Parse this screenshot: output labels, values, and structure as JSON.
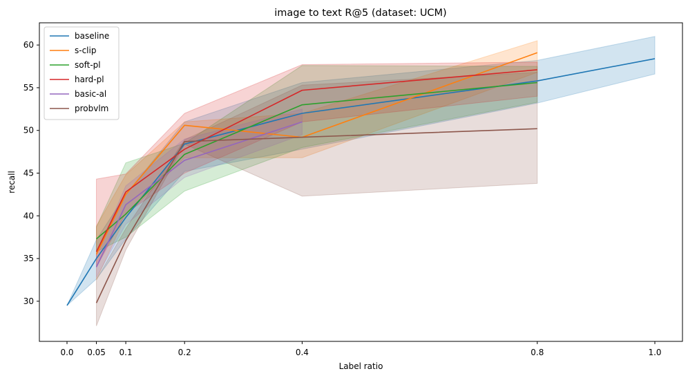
{
  "chart_data": {
    "type": "line",
    "title": "image to text R@5 (dataset: UCM)",
    "xlabel": "Label ratio",
    "ylabel": "recall",
    "xlim": [
      -0.047,
      1.047
    ],
    "ylim": [
      25.3,
      62.6
    ],
    "xticks": [
      0.0,
      0.05,
      0.1,
      0.2,
      0.4,
      0.8,
      1.0
    ],
    "xtick_labels": [
      "0.0",
      "0.05",
      "0.1",
      "0.2",
      "0.4",
      "0.8",
      "1.0"
    ],
    "yticks": [
      30,
      35,
      40,
      45,
      50,
      55,
      60
    ],
    "ytick_labels": [
      "30",
      "35",
      "40",
      "45",
      "50",
      "55",
      "60"
    ],
    "grid": false,
    "legend_position": "top-left",
    "series": [
      {
        "name": "baseline",
        "color": "#1f77b4",
        "x": [
          0.0,
          0.05,
          0.1,
          0.2,
          0.4,
          0.8,
          1.0
        ],
        "y": [
          29.5,
          35.0,
          39.8,
          48.4,
          52.0,
          55.8,
          58.4
        ],
        "lower": [
          29.5,
          32.6,
          37.3,
          45.2,
          47.8,
          53.2,
          56.6
        ],
        "upper": [
          29.5,
          37.2,
          42.5,
          51.0,
          55.6,
          58.2,
          61.0
        ]
      },
      {
        "name": "s-clip",
        "color": "#ff7f0e",
        "x": [
          0.05,
          0.1,
          0.2,
          0.4,
          0.8
        ],
        "y": [
          35.5,
          42.5,
          50.6,
          49.2,
          59.1
        ],
        "lower": [
          32.5,
          40.0,
          46.8,
          46.8,
          56.8
        ],
        "upper": [
          38.8,
          44.8,
          51.0,
          52.0,
          60.5
        ]
      },
      {
        "name": "soft-pl",
        "color": "#2ca02c",
        "x": [
          0.05,
          0.1,
          0.2,
          0.4,
          0.8
        ],
        "y": [
          37.3,
          40.2,
          47.2,
          53.0,
          55.6
        ],
        "lower": [
          35.8,
          37.5,
          42.9,
          48.0,
          53.3
        ],
        "upper": [
          38.7,
          46.2,
          48.5,
          57.6,
          57.5
        ]
      },
      {
        "name": "hard-pl",
        "color": "#d62728",
        "x": [
          0.05,
          0.1,
          0.2,
          0.4,
          0.8
        ],
        "y": [
          35.8,
          42.8,
          47.8,
          54.7,
          57.1
        ],
        "lower": [
          34.0,
          40.3,
          45.0,
          51.0,
          54.0
        ],
        "upper": [
          44.3,
          44.9,
          52.0,
          57.7,
          58.0
        ]
      },
      {
        "name": "basic-al",
        "color": "#9467bd",
        "x": [
          0.05,
          0.1,
          0.2,
          0.4
        ],
        "y": [
          34.0,
          41.3,
          46.5,
          51.0
        ],
        "lower": [
          32.8,
          39.0,
          44.5,
          49.5
        ],
        "upper": [
          35.5,
          43.5,
          49.0,
          52.5
        ]
      },
      {
        "name": "probvlm",
        "color": "#8c564b",
        "x": [
          0.05,
          0.1,
          0.2,
          0.4,
          0.8
        ],
        "y": [
          29.8,
          37.1,
          48.7,
          49.2,
          50.2
        ],
        "lower": [
          27.1,
          36.0,
          48.4,
          42.3,
          43.8
        ],
        "upper": [
          32.5,
          38.5,
          48.9,
          55.3,
          56.8
        ]
      }
    ]
  }
}
